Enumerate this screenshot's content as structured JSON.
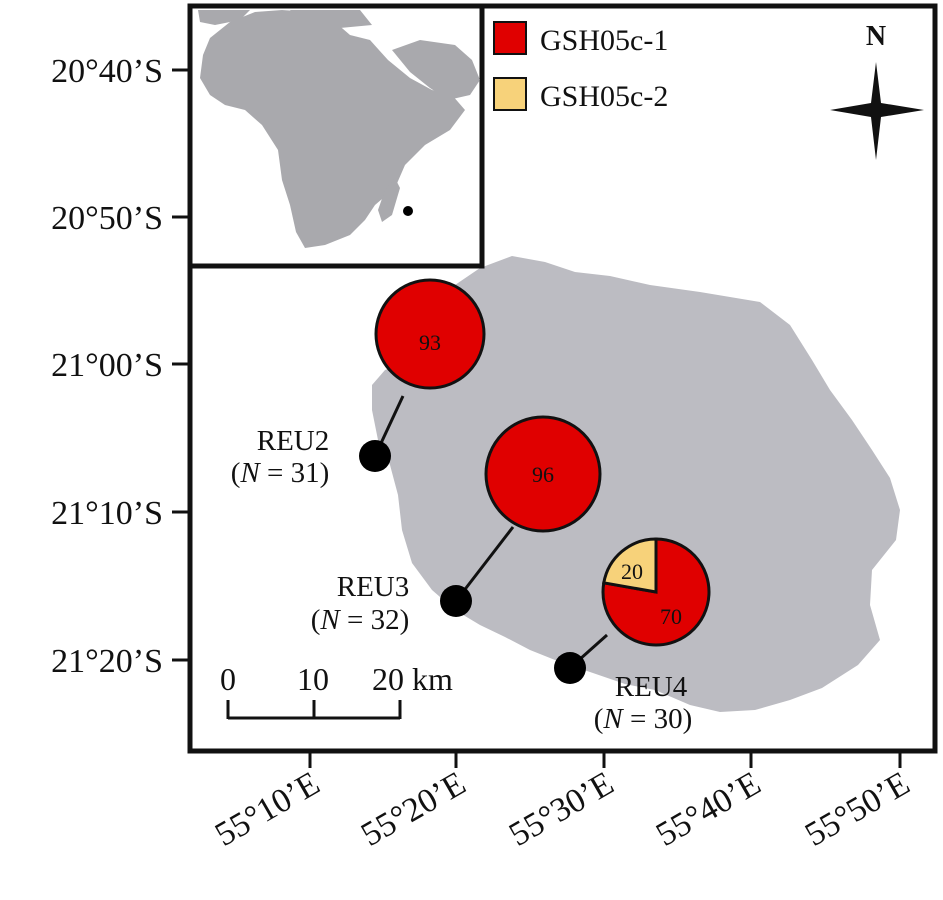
{
  "map": {
    "lat_labels": [
      "20°40’S",
      "20°50’S",
      "21°00’S",
      "21°10’S",
      "21°20’S"
    ],
    "lon_labels": [
      "55°10’E",
      "55°20’E",
      "55°30’E",
      "55°40’E",
      "55°50’E"
    ],
    "legend": [
      {
        "label": "GSH05c-1",
        "color": "#e00000"
      },
      {
        "label": "GSH05c-2",
        "color": "#f7d27a"
      }
    ],
    "north_label": "N",
    "scale_bar": {
      "ticks": [
        "0",
        "10",
        "20 km"
      ]
    },
    "sites": [
      {
        "id": "REU2",
        "name": "REU2",
        "n_label": "N",
        "n_eq": " = 31)",
        "values": [
          93
        ],
        "value_labels": [
          "93"
        ]
      },
      {
        "id": "REU3",
        "name": "REU3",
        "n_label": "N",
        "n_eq": " = 32)",
        "values": [
          96
        ],
        "value_labels": [
          "96"
        ]
      },
      {
        "id": "REU4",
        "name": "REU4",
        "n_label": "N",
        "n_eq": " = 30)",
        "values": [
          70,
          20
        ],
        "value_labels": [
          "70",
          "20"
        ]
      }
    ],
    "colors": {
      "land": "#bcbcc2",
      "inset_land": "#a9a9ad",
      "frame": "#111111",
      "marker": "#000000"
    }
  }
}
